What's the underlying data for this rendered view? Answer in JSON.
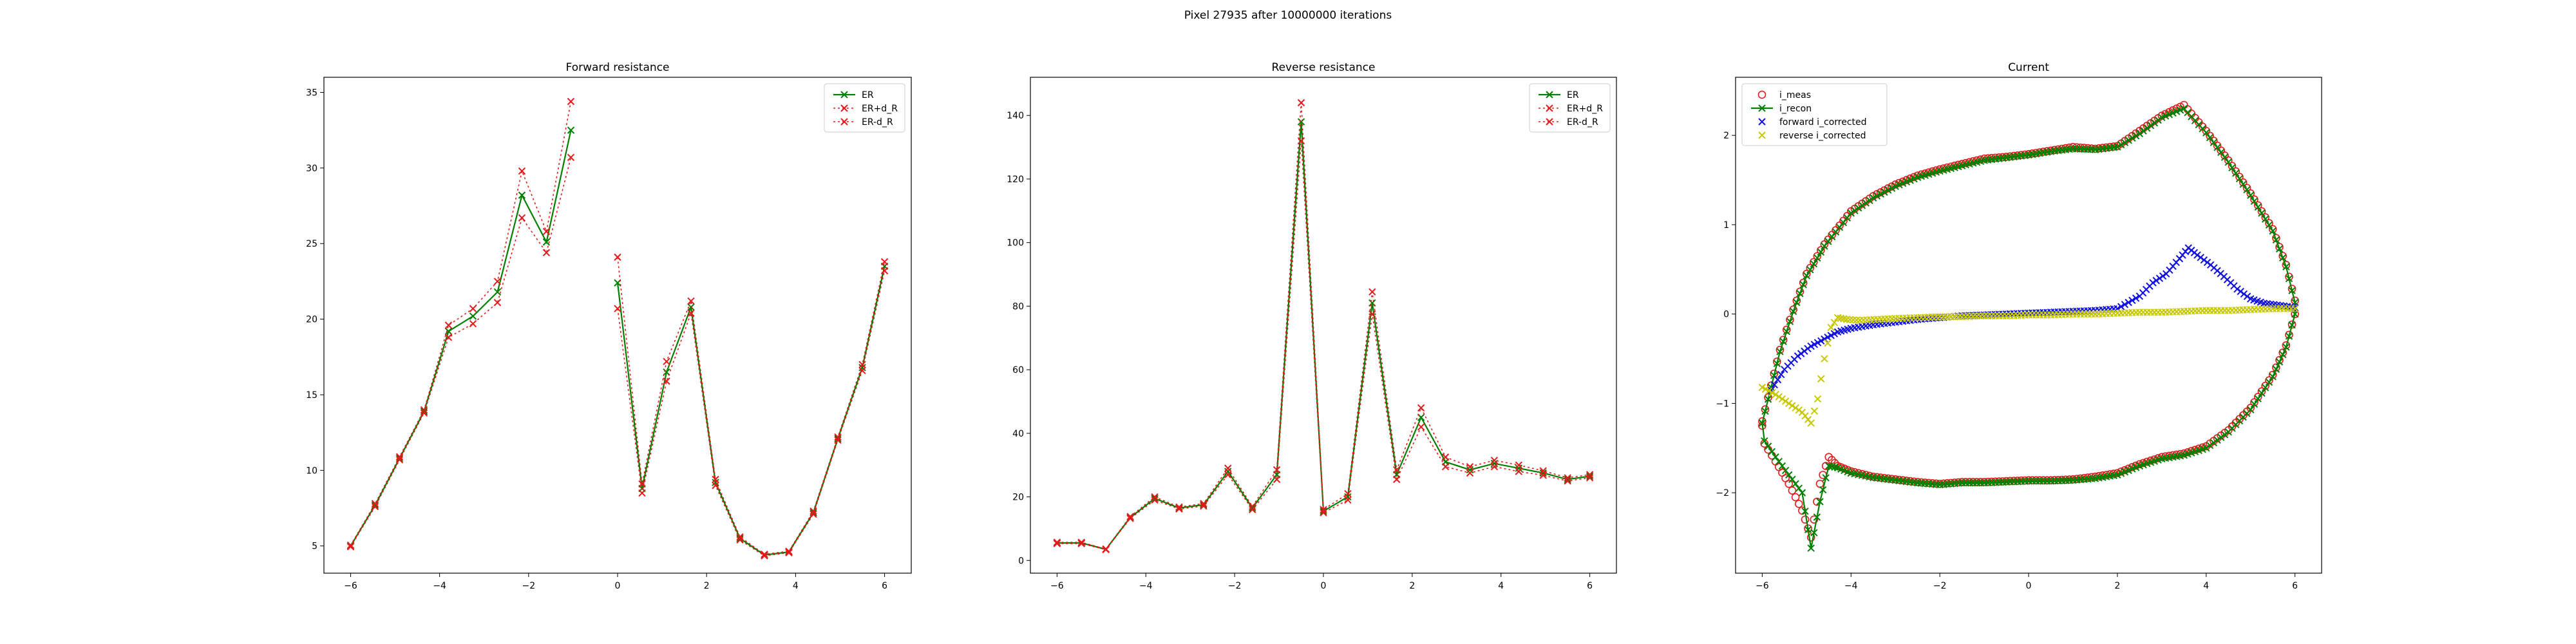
{
  "figure_title": "Pixel 27935 after 10000000 iterations",
  "chart_data": [
    {
      "type": "line",
      "title": "Forward resistance",
      "xlabel": "",
      "ylabel": "",
      "xlim": [
        -6.6,
        6.6
      ],
      "ylim": [
        3.2,
        36
      ],
      "xticks": [
        -6,
        -4,
        -2,
        0,
        2,
        4,
        6
      ],
      "yticks": [
        5,
        10,
        15,
        20,
        25,
        30,
        35
      ],
      "legend": "top-right",
      "series": [
        {
          "name": "ER",
          "style": "solid",
          "marker": "x",
          "color": "#008000",
          "segments": [
            {
              "x": [
                -6.0,
                -5.45,
                -4.9,
                -4.35,
                -3.8,
                -3.25,
                -2.7,
                -2.15,
                -1.6,
                -1.05
              ],
              "y": [
                5.0,
                7.7,
                10.8,
                13.9,
                19.2,
                20.2,
                21.8,
                28.2,
                25.1,
                32.5
              ]
            },
            {
              "x": [
                0.0,
                0.55,
                1.1,
                1.65,
                2.2,
                2.75,
                3.3,
                3.85,
                4.4,
                4.95,
                5.5,
                6.0
              ],
              "y": [
                22.4,
                8.8,
                16.5,
                20.8,
                9.2,
                5.5,
                4.4,
                4.6,
                7.2,
                12.1,
                16.8,
                23.5
              ]
            }
          ]
        },
        {
          "name": "ER+d_R",
          "style": "dotted",
          "marker": "x",
          "color": "#e41a1c",
          "segments": [
            {
              "x": [
                -6.0,
                -5.45,
                -4.9,
                -4.35,
                -3.8,
                -3.25,
                -2.7,
                -2.15,
                -1.6,
                -1.05
              ],
              "y": [
                5.05,
                7.8,
                10.9,
                14.0,
                19.6,
                20.7,
                22.5,
                29.8,
                25.8,
                34.4
              ]
            },
            {
              "x": [
                0.0,
                0.55,
                1.1,
                1.65,
                2.2,
                2.75,
                3.3,
                3.85,
                4.4,
                4.95,
                5.5,
                6.0
              ],
              "y": [
                24.1,
                9.1,
                17.2,
                21.2,
                9.4,
                5.6,
                4.45,
                4.65,
                7.3,
                12.2,
                17.0,
                23.8
              ]
            }
          ]
        },
        {
          "name": "ER-d_R",
          "style": "dotted",
          "marker": "x",
          "color": "#e41a1c",
          "segments": [
            {
              "x": [
                -6.0,
                -5.45,
                -4.9,
                -4.35,
                -3.8,
                -3.25,
                -2.7,
                -2.15,
                -1.6,
                -1.05
              ],
              "y": [
                4.95,
                7.6,
                10.7,
                13.8,
                18.8,
                19.7,
                21.1,
                26.7,
                24.4,
                30.7
              ]
            },
            {
              "x": [
                0.0,
                0.55,
                1.1,
                1.65,
                2.2,
                2.75,
                3.3,
                3.85,
                4.4,
                4.95,
                5.5,
                6.0
              ],
              "y": [
                20.7,
                8.5,
                15.9,
                20.4,
                9.0,
                5.4,
                4.35,
                4.55,
                7.1,
                12.0,
                16.6,
                23.2
              ]
            }
          ]
        }
      ]
    },
    {
      "type": "line",
      "title": "Reverse resistance",
      "xlabel": "",
      "ylabel": "",
      "xlim": [
        -6.6,
        6.6
      ],
      "ylim": [
        -4,
        152
      ],
      "xticks": [
        -6,
        -4,
        -2,
        0,
        2,
        4,
        6
      ],
      "yticks": [
        0,
        20,
        40,
        60,
        80,
        100,
        120,
        140
      ],
      "legend": "top-right",
      "series": [
        {
          "name": "ER",
          "style": "solid",
          "marker": "x",
          "color": "#008000",
          "segments": [
            {
              "x": [
                -6.0,
                -5.45,
                -4.9,
                -4.35,
                -3.8,
                -3.25,
                -2.7,
                -2.15,
                -1.6,
                -1.05,
                -0.5,
                0.0,
                0.55,
                1.1,
                1.65,
                2.2,
                2.75,
                3.3,
                3.85,
                4.4,
                4.95,
                5.5,
                6.0
              ],
              "y": [
                5.5,
                5.5,
                3.5,
                13.5,
                19.5,
                16.5,
                17.5,
                28.0,
                16.5,
                27.0,
                138.0,
                15.5,
                20.0,
                81.0,
                27.0,
                45.0,
                31.0,
                28.5,
                30.5,
                29.0,
                27.5,
                25.5,
                26.5
              ]
            }
          ]
        },
        {
          "name": "ER+d_R",
          "style": "dotted",
          "marker": "x",
          "color": "#e41a1c",
          "segments": [
            {
              "x": [
                -6.0,
                -5.45,
                -4.9,
                -4.35,
                -3.8,
                -3.25,
                -2.7,
                -2.15,
                -1.6,
                -1.05,
                -0.5,
                0.0,
                0.55,
                1.1,
                1.65,
                2.2,
                2.75,
                3.3,
                3.85,
                4.4,
                4.95,
                5.5,
                6.0
              ],
              "y": [
                5.7,
                5.7,
                3.6,
                13.8,
                20.0,
                16.8,
                17.9,
                29.0,
                17.0,
                28.5,
                144.0,
                16.0,
                21.0,
                84.5,
                28.5,
                48.0,
                32.5,
                29.5,
                31.5,
                30.0,
                28.2,
                26.0,
                27.0
              ]
            }
          ]
        },
        {
          "name": "ER-d_R",
          "style": "dotted",
          "marker": "x",
          "color": "#e41a1c",
          "segments": [
            {
              "x": [
                -6.0,
                -5.45,
                -4.9,
                -4.35,
                -3.8,
                -3.25,
                -2.7,
                -2.15,
                -1.6,
                -1.05,
                -0.5,
                0.0,
                0.55,
                1.1,
                1.65,
                2.2,
                2.75,
                3.3,
                3.85,
                4.4,
                4.95,
                5.5,
                6.0
              ],
              "y": [
                5.3,
                5.3,
                3.4,
                13.2,
                19.0,
                16.2,
                17.1,
                27.0,
                16.0,
                25.5,
                132.0,
                15.0,
                19.0,
                77.5,
                25.5,
                42.0,
                29.5,
                27.5,
                29.5,
                28.0,
                26.8,
                25.0,
                26.0
              ]
            }
          ]
        }
      ]
    },
    {
      "type": "scatter",
      "title": "Current",
      "xlabel": "",
      "ylabel": "",
      "xlim": [
        -6.6,
        6.6
      ],
      "ylim": [
        -2.9,
        2.65
      ],
      "xticks": [
        -6,
        -4,
        -2,
        0,
        2,
        4,
        6
      ],
      "yticks": [
        -2,
        -1,
        0,
        1,
        2
      ],
      "legend": "top-left",
      "series": [
        {
          "name": "i_meas",
          "marker": "o",
          "color": "#e41a1c",
          "style": "none",
          "loop": {
            "upper": {
              "x": [
                -6.0,
                -5.8,
                -5.6,
                -5.3,
                -5.0,
                -4.6,
                -4.0,
                -3.5,
                -3.0,
                -2.5,
                -2.0,
                -1.5,
                -1.0,
                -0.5,
                0.0,
                0.5,
                1.0,
                1.5,
                2.0,
                2.5,
                3.0,
                3.5,
                4.0,
                4.5,
                5.0,
                5.5,
                5.8,
                6.0
              ],
              "y": [
                -1.2,
                -0.8,
                -0.4,
                0.05,
                0.45,
                0.78,
                1.15,
                1.32,
                1.45,
                1.55,
                1.62,
                1.68,
                1.74,
                1.76,
                1.79,
                1.83,
                1.87,
                1.85,
                1.88,
                2.05,
                2.22,
                2.34,
                2.05,
                1.72,
                1.35,
                0.95,
                0.55,
                0.15
              ]
            },
            "lower": {
              "x": [
                6.0,
                5.8,
                5.5,
                5.0,
                4.5,
                4.0,
                3.5,
                3.0,
                2.5,
                2.0,
                1.5,
                1.0,
                0.5,
                0.0,
                -0.5,
                -1.0,
                -1.5,
                -2.0,
                -2.5,
                -3.0,
                -3.5,
                -4.0,
                -4.3,
                -4.5,
                -4.7,
                -4.9,
                -5.1,
                -5.4,
                -5.7,
                -5.95,
                -6.0
              ],
              "y": [
                0.0,
                -0.35,
                -0.68,
                -1.05,
                -1.3,
                -1.48,
                -1.56,
                -1.6,
                -1.68,
                -1.78,
                -1.82,
                -1.85,
                -1.86,
                -1.86,
                -1.87,
                -1.88,
                -1.88,
                -1.9,
                -1.88,
                -1.85,
                -1.82,
                -1.76,
                -1.7,
                -1.6,
                -1.9,
                -2.5,
                -2.2,
                -1.9,
                -1.65,
                -1.45,
                -1.25
              ]
            }
          }
        },
        {
          "name": "i_recon",
          "marker": "x",
          "color": "#008000",
          "style": "solid",
          "loop": {
            "upper": {
              "x": [
                -6.0,
                -5.8,
                -5.6,
                -5.3,
                -5.0,
                -4.6,
                -4.0,
                -3.5,
                -3.0,
                -2.5,
                -2.0,
                -1.5,
                -1.0,
                -0.5,
                0.0,
                0.5,
                1.0,
                1.5,
                2.0,
                2.5,
                3.0,
                3.5,
                4.0,
                4.5,
                5.0,
                5.5,
                5.8,
                6.0
              ],
              "y": [
                -1.22,
                -0.82,
                -0.42,
                0.03,
                0.43,
                0.76,
                1.13,
                1.3,
                1.43,
                1.53,
                1.6,
                1.66,
                1.72,
                1.75,
                1.78,
                1.82,
                1.85,
                1.84,
                1.87,
                2.02,
                2.2,
                2.3,
                2.03,
                1.7,
                1.33,
                0.93,
                0.53,
                0.13
              ]
            },
            "lower": {
              "x": [
                6.0,
                5.8,
                5.5,
                5.0,
                4.5,
                4.0,
                3.5,
                3.0,
                2.5,
                2.0,
                1.5,
                1.0,
                0.5,
                0.0,
                -0.5,
                -1.0,
                -1.5,
                -2.0,
                -2.5,
                -3.0,
                -3.5,
                -4.0,
                -4.3,
                -4.5,
                -4.7,
                -4.9,
                -5.1,
                -5.4,
                -5.7,
                -5.95,
                -6.0
              ],
              "y": [
                0.0,
                -0.37,
                -0.7,
                -1.07,
                -1.32,
                -1.5,
                -1.58,
                -1.62,
                -1.7,
                -1.8,
                -1.84,
                -1.86,
                -1.87,
                -1.87,
                -1.88,
                -1.89,
                -1.89,
                -1.91,
                -1.89,
                -1.86,
                -1.83,
                -1.78,
                -1.72,
                -1.7,
                -2.1,
                -2.62,
                -2.0,
                -1.8,
                -1.6,
                -1.42,
                -1.22
              ]
            }
          }
        },
        {
          "name": "forward i_corrected",
          "marker": "x",
          "color": "#1010e0",
          "style": "none",
          "x": [
            -5.8,
            -5.5,
            -5.2,
            -4.9,
            -4.6,
            -4.3,
            -4.0,
            -3.5,
            -3.0,
            -2.5,
            -2.0,
            -1.5,
            -1.0,
            -0.5,
            0.0,
            0.5,
            1.0,
            1.5,
            2.0,
            2.5,
            2.8,
            3.1,
            3.4,
            3.6,
            3.8,
            4.1,
            4.4,
            4.7,
            5.0,
            5.3,
            5.6,
            5.9,
            6.0
          ],
          "y": [
            -0.85,
            -0.62,
            -0.47,
            -0.36,
            -0.28,
            -0.2,
            -0.16,
            -0.12,
            -0.09,
            -0.06,
            -0.04,
            -0.02,
            -0.01,
            0.0,
            0.01,
            0.02,
            0.03,
            0.04,
            0.06,
            0.2,
            0.35,
            0.45,
            0.62,
            0.74,
            0.66,
            0.55,
            0.42,
            0.28,
            0.17,
            0.12,
            0.1,
            0.08,
            0.07
          ]
        },
        {
          "name": "reverse i_corrected",
          "marker": "x",
          "color": "#c8c800",
          "style": "none",
          "x": [
            -6.0,
            -5.7,
            -5.4,
            -5.1,
            -4.9,
            -4.75,
            -4.6,
            -4.45,
            -4.3,
            -4.1,
            -3.8,
            -3.4,
            -3.0,
            -2.5,
            -2.0,
            -1.5,
            -1.0,
            -0.5,
            0.0,
            0.5,
            1.0,
            1.5,
            2.0,
            2.5,
            3.0,
            3.5,
            4.0,
            4.5,
            5.0,
            5.5,
            6.0
          ],
          "y": [
            -0.82,
            -0.9,
            -1.0,
            -1.1,
            -1.22,
            -0.95,
            -0.5,
            -0.15,
            -0.04,
            -0.06,
            -0.07,
            -0.06,
            -0.05,
            -0.04,
            -0.03,
            -0.03,
            -0.02,
            -0.02,
            -0.01,
            -0.01,
            0.0,
            0.0,
            0.01,
            0.02,
            0.02,
            0.03,
            0.04,
            0.04,
            0.05,
            0.06,
            0.06
          ]
        }
      ]
    }
  ]
}
